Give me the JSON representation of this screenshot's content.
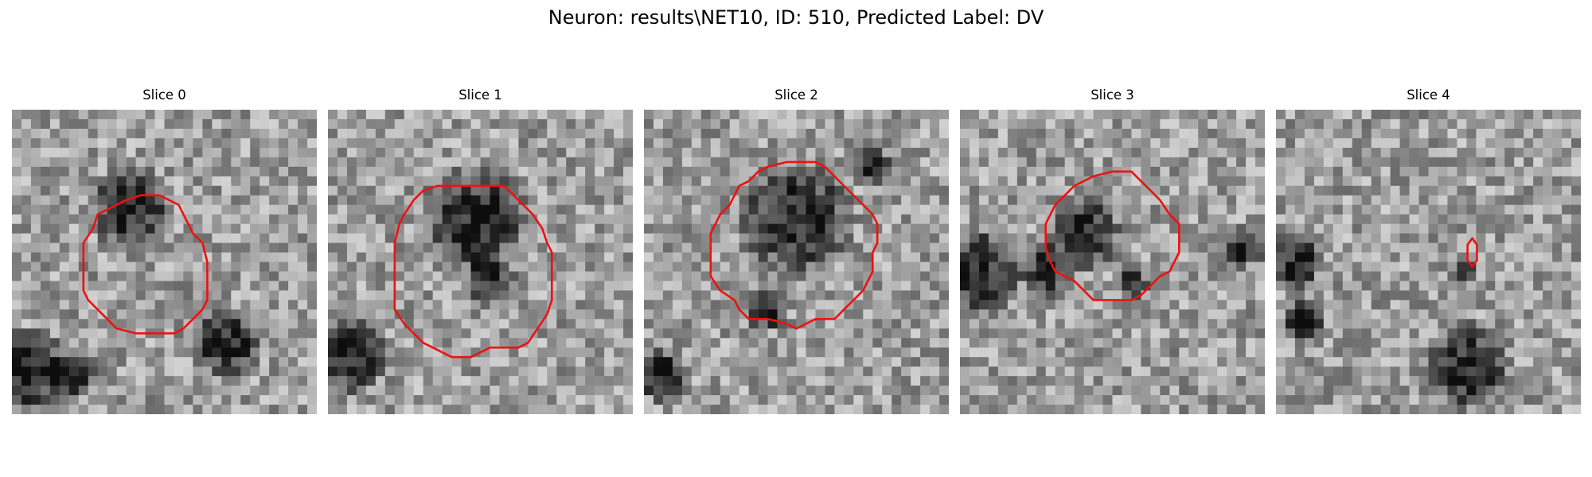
{
  "figure": {
    "title": "Neuron: results\\NET10, ID: 510, Predicted Label: DV",
    "contour_color": "#ee1111",
    "panels": [
      {
        "title": "Slice 0"
      },
      {
        "title": "Slice 1"
      },
      {
        "title": "Slice 2"
      },
      {
        "title": "Slice 3"
      },
      {
        "title": "Slice 4"
      }
    ]
  }
}
